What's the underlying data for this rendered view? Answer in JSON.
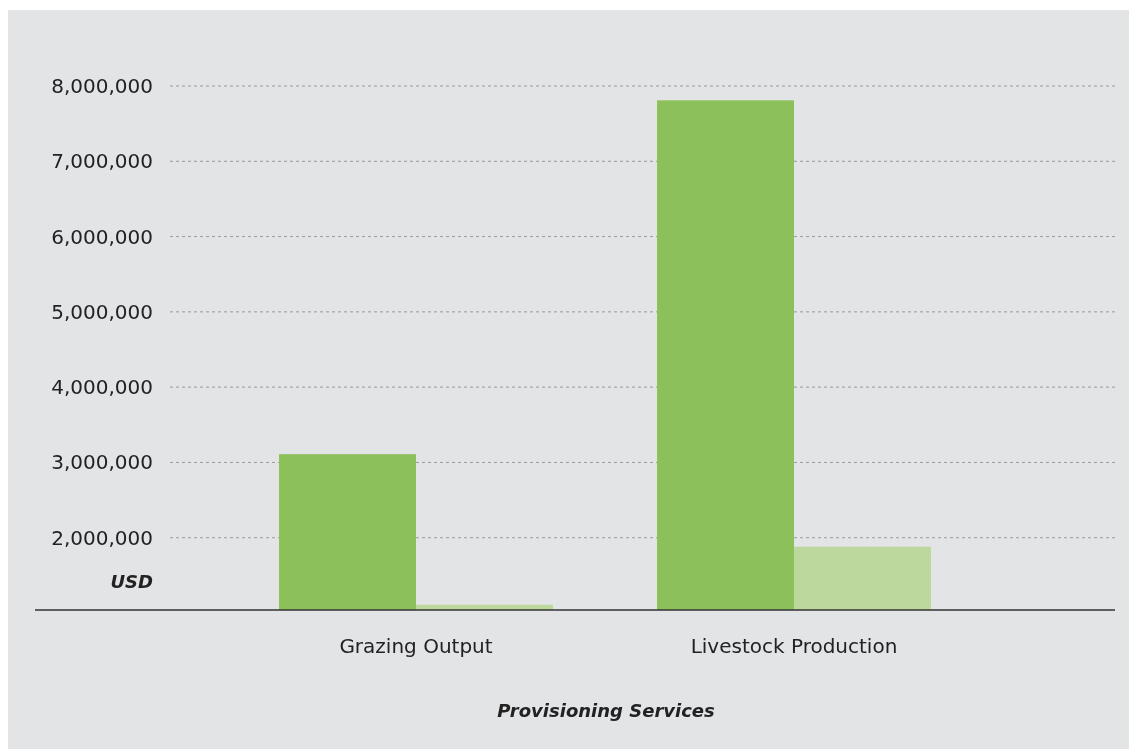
{
  "chart_data": {
    "type": "bar",
    "categories": [
      "Grazing Output",
      "Livestock Production"
    ],
    "series": [
      {
        "color": "#8cc05a",
        "values": [
          3110000,
          7810000
        ]
      },
      {
        "color": "#bdd89d",
        "values": [
          1110000,
          1880000
        ]
      }
    ],
    "xlabel": "Provisioning Services",
    "ylabel": "USD",
    "ylim": [
      1040000,
      8000000
    ],
    "yticks": [
      {
        "value": 2000000,
        "label": "2,000,000"
      },
      {
        "value": 3000000,
        "label": "3,000,000"
      },
      {
        "value": 4000000,
        "label": "4,000,000"
      },
      {
        "value": 5000000,
        "label": "5,000,000"
      },
      {
        "value": 6000000,
        "label": "6,000,000"
      },
      {
        "value": 7000000,
        "label": "7,000,000"
      },
      {
        "value": 8000000,
        "label": "8,000,000"
      }
    ],
    "grid": "y"
  }
}
